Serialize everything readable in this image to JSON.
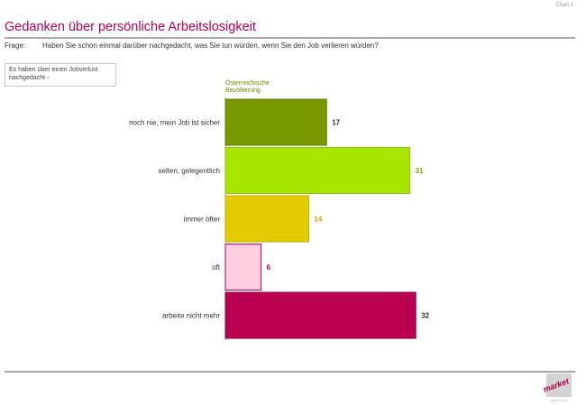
{
  "chart_id": "Chart 1",
  "title": "Gedanken über persönliche Arbeitslosigkeit",
  "question": {
    "label": "Frage:",
    "text": "Haben Sie schon einmal darüber nachgedacht, was Sie tun würden, wenn Sie den Job verlieren würden?"
  },
  "note": "Es haben über einen Jobverlust nachgedacht -",
  "column_header": "Österreichische Bevölkerung",
  "logo": {
    "text": "market",
    "subtext": "institut"
  },
  "chart_data": {
    "type": "bar",
    "orientation": "horizontal",
    "categories": [
      "noch nie, mein Job ist sicher",
      "selten, gelegentlich",
      "immer öfter",
      "oft",
      "arbeite nicht mehr"
    ],
    "series": [
      {
        "name": "Österreichische Bevölkerung",
        "values": [
          17,
          31,
          14,
          6,
          32
        ]
      }
    ],
    "bar_colors": [
      "#769a00",
      "#a8e600",
      "#e2cc00",
      "#ffcce0",
      "#bb004f"
    ],
    "bar_border_colors": [
      "#5e7c00",
      "#8cc400",
      "#c0ad00",
      "#bb004f",
      "#8e003c"
    ],
    "label_colors": [
      "#333333",
      "#8aa800",
      "#c8a800",
      "#bb004f",
      "#333333"
    ],
    "xlim": [
      0,
      32
    ],
    "grid": false,
    "legend": "none"
  }
}
